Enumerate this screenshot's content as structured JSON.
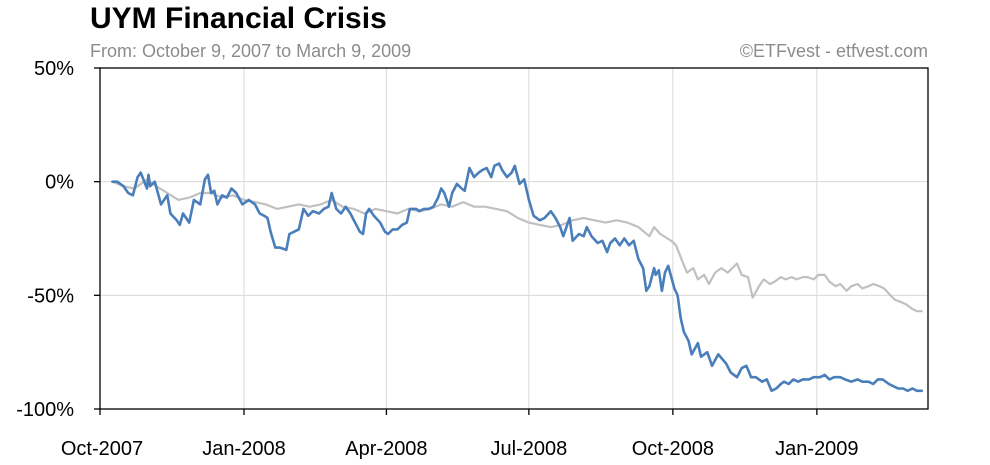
{
  "chart_data": {
    "type": "line",
    "title": "UYM Financial Crisis",
    "subtitle": "From: October 9, 2007 to March 9, 2009",
    "credit": "©ETFvest - etfvest.com",
    "xlabel": "",
    "ylabel": "",
    "x_tick_labels": [
      "Oct-2007",
      "Jan-2008",
      "Apr-2008",
      "Jul-2008",
      "Oct-2008",
      "Jan-2009"
    ],
    "x_ticks": [
      "2007-10-01",
      "2008-01-01",
      "2008-04-01",
      "2008-07-01",
      "2008-10-01",
      "2009-01-01"
    ],
    "xlim": [
      "2007-10-01",
      "2009-03-13"
    ],
    "y_tick_labels": [
      "50%",
      "0%",
      "-50%",
      "-100%"
    ],
    "y_ticks": [
      50,
      0,
      -50,
      -100
    ],
    "ylim": [
      -100,
      50
    ],
    "grid": true,
    "legend": "none",
    "series": [
      {
        "color": "#4a7ebb",
        "points": [
          [
            "2007-10-09",
            0
          ],
          [
            "2007-10-12",
            0
          ],
          [
            "2007-10-16",
            -2
          ],
          [
            "2007-10-19",
            -5
          ],
          [
            "2007-10-22",
            -6
          ],
          [
            "2007-10-25",
            2
          ],
          [
            "2007-10-27",
            4
          ],
          [
            "2007-10-31",
            -3
          ],
          [
            "2007-11-01",
            3
          ],
          [
            "2007-11-02",
            -2
          ],
          [
            "2007-11-05",
            0
          ],
          [
            "2007-11-09",
            -10
          ],
          [
            "2007-11-13",
            -6
          ],
          [
            "2007-11-15",
            -14
          ],
          [
            "2007-11-19",
            -17
          ],
          [
            "2007-11-21",
            -19
          ],
          [
            "2007-11-23",
            -14
          ],
          [
            "2007-11-27",
            -18
          ],
          [
            "2007-11-30",
            -8
          ],
          [
            "2007-12-04",
            -10
          ],
          [
            "2007-12-07",
            1
          ],
          [
            "2007-12-09",
            3
          ],
          [
            "2007-12-11",
            -5
          ],
          [
            "2007-12-13",
            -4
          ],
          [
            "2007-12-15",
            -10
          ],
          [
            "2007-12-18",
            -6
          ],
          [
            "2007-12-21",
            -7
          ],
          [
            "2007-12-24",
            -3
          ],
          [
            "2007-12-27",
            -5
          ],
          [
            "2007-12-31",
            -10
          ],
          [
            "2008-01-04",
            -8
          ],
          [
            "2008-01-08",
            -10
          ],
          [
            "2008-01-11",
            -14
          ],
          [
            "2008-01-14",
            -15
          ],
          [
            "2008-01-16",
            -16
          ],
          [
            "2008-01-18",
            -22
          ],
          [
            "2008-01-21",
            -29
          ],
          [
            "2008-01-24",
            -29
          ],
          [
            "2008-01-28",
            -30
          ],
          [
            "2008-01-30",
            -23
          ],
          [
            "2008-02-05",
            -21
          ],
          [
            "2008-02-08",
            -12
          ],
          [
            "2008-02-11",
            -15
          ],
          [
            "2008-02-14",
            -13
          ],
          [
            "2008-02-18",
            -14
          ],
          [
            "2008-02-21",
            -12
          ],
          [
            "2008-02-24",
            -11
          ],
          [
            "2008-02-26",
            -5
          ],
          [
            "2008-02-29",
            -12
          ],
          [
            "2008-03-03",
            -14
          ],
          [
            "2008-03-06",
            -11
          ],
          [
            "2008-03-09",
            -14
          ],
          [
            "2008-03-12",
            -18
          ],
          [
            "2008-03-15",
            -22
          ],
          [
            "2008-03-17",
            -23
          ],
          [
            "2008-03-19",
            -14
          ],
          [
            "2008-03-21",
            -12
          ],
          [
            "2008-03-24",
            -15
          ],
          [
            "2008-03-28",
            -18
          ],
          [
            "2008-03-31",
            -22
          ],
          [
            "2008-04-02",
            -23
          ],
          [
            "2008-04-05",
            -21
          ],
          [
            "2008-04-08",
            -21
          ],
          [
            "2008-04-11",
            -19
          ],
          [
            "2008-04-14",
            -18
          ],
          [
            "2008-04-16",
            -12
          ],
          [
            "2008-04-20",
            -12
          ],
          [
            "2008-04-22",
            -13
          ],
          [
            "2008-04-25",
            -12
          ],
          [
            "2008-04-28",
            -12
          ],
          [
            "2008-05-01",
            -11
          ],
          [
            "2008-05-04",
            -7
          ],
          [
            "2008-05-06",
            -3
          ],
          [
            "2008-05-08",
            -5
          ],
          [
            "2008-05-11",
            -11
          ],
          [
            "2008-05-13",
            -5
          ],
          [
            "2008-05-16",
            -1
          ],
          [
            "2008-05-19",
            -3
          ],
          [
            "2008-05-21",
            -4
          ],
          [
            "2008-05-24",
            6
          ],
          [
            "2008-05-27",
            2
          ],
          [
            "2008-05-30",
            4
          ],
          [
            "2008-06-01",
            5
          ],
          [
            "2008-06-04",
            6
          ],
          [
            "2008-06-07",
            2
          ],
          [
            "2008-06-09",
            7
          ],
          [
            "2008-06-12",
            8
          ],
          [
            "2008-06-14",
            5
          ],
          [
            "2008-06-17",
            2
          ],
          [
            "2008-06-20",
            4
          ],
          [
            "2008-06-22",
            7
          ],
          [
            "2008-06-25",
            -1
          ],
          [
            "2008-06-28",
            1
          ],
          [
            "2008-07-01",
            -8
          ],
          [
            "2008-07-04",
            -15
          ],
          [
            "2008-07-08",
            -17
          ],
          [
            "2008-07-11",
            -16
          ],
          [
            "2008-07-15",
            -13
          ],
          [
            "2008-07-18",
            -16
          ],
          [
            "2008-07-21",
            -20
          ],
          [
            "2008-07-23",
            -24
          ],
          [
            "2008-07-27",
            -16
          ],
          [
            "2008-07-29",
            -26
          ],
          [
            "2008-08-02",
            -23
          ],
          [
            "2008-08-05",
            -24
          ],
          [
            "2008-08-07",
            -20
          ],
          [
            "2008-08-10",
            -24
          ],
          [
            "2008-08-14",
            -27
          ],
          [
            "2008-08-17",
            -26
          ],
          [
            "2008-08-20",
            -31
          ],
          [
            "2008-08-22",
            -27
          ],
          [
            "2008-08-25",
            -25
          ],
          [
            "2008-08-28",
            -28
          ],
          [
            "2008-08-31",
            -25
          ],
          [
            "2008-09-03",
            -28
          ],
          [
            "2008-09-06",
            -26
          ],
          [
            "2008-09-09",
            -34
          ],
          [
            "2008-09-12",
            -38
          ],
          [
            "2008-09-14",
            -48
          ],
          [
            "2008-09-16",
            -46
          ],
          [
            "2008-09-19",
            -38
          ],
          [
            "2008-09-20",
            -41
          ],
          [
            "2008-09-22",
            -39
          ],
          [
            "2008-09-24",
            -48
          ],
          [
            "2008-09-26",
            -40
          ],
          [
            "2008-09-28",
            -37
          ],
          [
            "2008-09-30",
            -42
          ],
          [
            "2008-10-02",
            -47
          ],
          [
            "2008-10-04",
            -50
          ],
          [
            "2008-10-06",
            -60
          ],
          [
            "2008-10-08",
            -66
          ],
          [
            "2008-10-11",
            -70
          ],
          [
            "2008-10-13",
            -76
          ],
          [
            "2008-10-17",
            -71
          ],
          [
            "2008-10-19",
            -77
          ],
          [
            "2008-10-23",
            -75
          ],
          [
            "2008-10-26",
            -81
          ],
          [
            "2008-10-30",
            -76
          ],
          [
            "2008-11-04",
            -80
          ],
          [
            "2008-11-07",
            -84
          ],
          [
            "2008-11-11",
            -86
          ],
          [
            "2008-11-14",
            -82
          ],
          [
            "2008-11-17",
            -81
          ],
          [
            "2008-11-20",
            -86
          ],
          [
            "2008-11-23",
            -86
          ],
          [
            "2008-11-27",
            -88
          ],
          [
            "2008-11-30",
            -87
          ],
          [
            "2008-12-03",
            -92
          ],
          [
            "2008-12-06",
            -91
          ],
          [
            "2008-12-09",
            -89
          ],
          [
            "2008-12-11",
            -88
          ],
          [
            "2008-12-14",
            -89
          ],
          [
            "2008-12-17",
            -87
          ],
          [
            "2008-12-20",
            -88
          ],
          [
            "2008-12-23",
            -87
          ],
          [
            "2008-12-27",
            -87
          ],
          [
            "2008-12-30",
            -86
          ],
          [
            "2009-01-03",
            -86
          ],
          [
            "2009-01-06",
            -85
          ],
          [
            "2009-01-09",
            -87
          ],
          [
            "2009-01-12",
            -86
          ],
          [
            "2009-01-16",
            -86
          ],
          [
            "2009-01-19",
            -87
          ],
          [
            "2009-01-23",
            -88
          ],
          [
            "2009-01-27",
            -87
          ],
          [
            "2009-01-30",
            -88
          ],
          [
            "2009-02-03",
            -88
          ],
          [
            "2009-02-06",
            -89
          ],
          [
            "2009-02-09",
            -87
          ],
          [
            "2009-02-12",
            -87
          ],
          [
            "2009-02-16",
            -89
          ],
          [
            "2009-02-19",
            -90
          ],
          [
            "2009-02-22",
            -91
          ],
          [
            "2009-02-25",
            -91
          ],
          [
            "2009-02-28",
            -92
          ],
          [
            "2009-03-03",
            -91
          ],
          [
            "2009-03-06",
            -92
          ],
          [
            "2009-03-09",
            -92
          ]
        ]
      },
      {
        "color": "#c0c0c0",
        "points": [
          [
            "2007-10-09",
            0
          ],
          [
            "2007-10-16",
            -2
          ],
          [
            "2007-10-23",
            -3
          ],
          [
            "2007-10-31",
            1
          ],
          [
            "2007-11-06",
            -2
          ],
          [
            "2007-11-13",
            -5
          ],
          [
            "2007-11-20",
            -8
          ],
          [
            "2007-11-27",
            -7
          ],
          [
            "2007-12-04",
            -5
          ],
          [
            "2007-12-11",
            -5
          ],
          [
            "2007-12-18",
            -7
          ],
          [
            "2007-12-25",
            -6
          ],
          [
            "2008-01-01",
            -8
          ],
          [
            "2008-01-08",
            -9
          ],
          [
            "2008-01-15",
            -10
          ],
          [
            "2008-01-22",
            -12
          ],
          [
            "2008-01-29",
            -11
          ],
          [
            "2008-02-05",
            -10
          ],
          [
            "2008-02-12",
            -11
          ],
          [
            "2008-02-19",
            -10
          ],
          [
            "2008-02-26",
            -8
          ],
          [
            "2008-03-04",
            -11
          ],
          [
            "2008-03-11",
            -12
          ],
          [
            "2008-03-18",
            -14
          ],
          [
            "2008-03-25",
            -12
          ],
          [
            "2008-04-01",
            -13
          ],
          [
            "2008-04-08",
            -14
          ],
          [
            "2008-04-15",
            -12
          ],
          [
            "2008-04-22",
            -13
          ],
          [
            "2008-04-29",
            -12
          ],
          [
            "2008-05-06",
            -10
          ],
          [
            "2008-05-13",
            -11
          ],
          [
            "2008-05-20",
            -9
          ],
          [
            "2008-05-27",
            -11
          ],
          [
            "2008-06-03",
            -11
          ],
          [
            "2008-06-10",
            -12
          ],
          [
            "2008-06-17",
            -13
          ],
          [
            "2008-06-24",
            -16
          ],
          [
            "2008-07-01",
            -18
          ],
          [
            "2008-07-08",
            -19
          ],
          [
            "2008-07-15",
            -20
          ],
          [
            "2008-07-22",
            -19
          ],
          [
            "2008-07-29",
            -17
          ],
          [
            "2008-08-05",
            -16
          ],
          [
            "2008-08-12",
            -17
          ],
          [
            "2008-08-19",
            -18
          ],
          [
            "2008-08-26",
            -17
          ],
          [
            "2008-09-02",
            -18
          ],
          [
            "2008-09-09",
            -20
          ],
          [
            "2008-09-16",
            -24
          ],
          [
            "2008-09-19",
            -20
          ],
          [
            "2008-09-23",
            -23
          ],
          [
            "2008-09-30",
            -26
          ],
          [
            "2008-10-03",
            -28
          ],
          [
            "2008-10-07",
            -35
          ],
          [
            "2008-10-10",
            -40
          ],
          [
            "2008-10-14",
            -38
          ],
          [
            "2008-10-17",
            -43
          ],
          [
            "2008-10-21",
            -41
          ],
          [
            "2008-10-24",
            -45
          ],
          [
            "2008-10-28",
            -40
          ],
          [
            "2008-11-01",
            -38
          ],
          [
            "2008-11-05",
            -40
          ],
          [
            "2008-11-11",
            -36
          ],
          [
            "2008-11-14",
            -41
          ],
          [
            "2008-11-18",
            -42
          ],
          [
            "2008-11-21",
            -51
          ],
          [
            "2008-11-25",
            -46
          ],
          [
            "2008-11-28",
            -43
          ],
          [
            "2008-12-02",
            -45
          ],
          [
            "2008-12-05",
            -44
          ],
          [
            "2008-12-09",
            -42
          ],
          [
            "2008-12-12",
            -43
          ],
          [
            "2008-12-16",
            -42
          ],
          [
            "2008-12-19",
            -43
          ],
          [
            "2008-12-23",
            -42
          ],
          [
            "2008-12-26",
            -42
          ],
          [
            "2008-12-30",
            -43
          ],
          [
            "2009-01-02",
            -41
          ],
          [
            "2009-01-06",
            -41
          ],
          [
            "2009-01-09",
            -44
          ],
          [
            "2009-01-13",
            -46
          ],
          [
            "2009-01-16",
            -45
          ],
          [
            "2009-01-20",
            -48
          ],
          [
            "2009-01-23",
            -46
          ],
          [
            "2009-01-27",
            -45
          ],
          [
            "2009-01-30",
            -47
          ],
          [
            "2009-02-03",
            -46
          ],
          [
            "2009-02-06",
            -45
          ],
          [
            "2009-02-10",
            -46
          ],
          [
            "2009-02-13",
            -47
          ],
          [
            "2009-02-17",
            -50
          ],
          [
            "2009-02-20",
            -52
          ],
          [
            "2009-02-24",
            -53
          ],
          [
            "2009-02-27",
            -54
          ],
          [
            "2009-03-03",
            -56
          ],
          [
            "2009-03-06",
            -57
          ],
          [
            "2009-03-09",
            -57
          ]
        ]
      }
    ]
  }
}
